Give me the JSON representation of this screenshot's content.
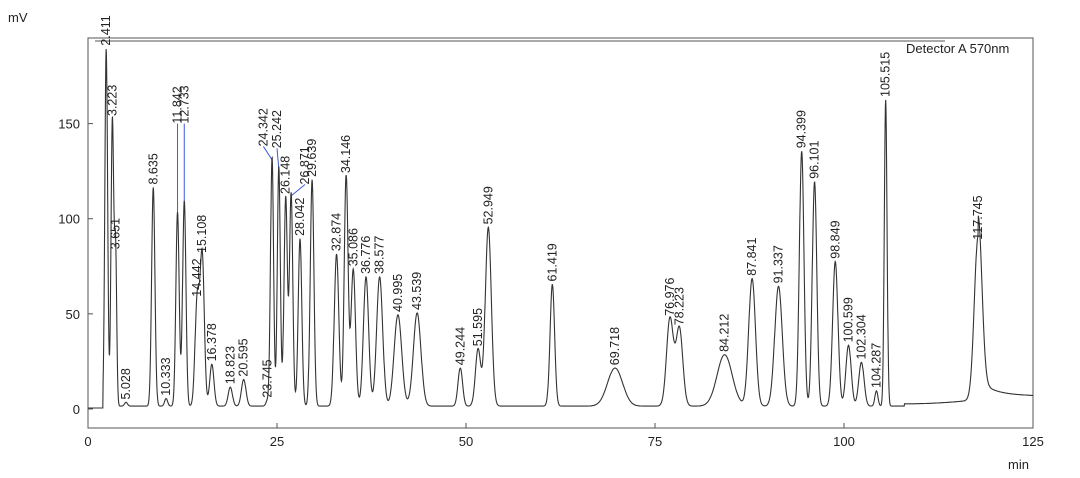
{
  "chart_data": {
    "type": "line",
    "ylabel": "mV",
    "xlabel": "min",
    "annotation": "Detector A 570nm",
    "xlim": [
      0,
      125
    ],
    "ylim": [
      -10,
      195
    ],
    "x_ticks": [
      0,
      25,
      50,
      75,
      100,
      125
    ],
    "y_ticks": [
      0,
      50,
      100,
      150
    ],
    "series_color": "#333333",
    "pointer_color": "#3b5bdb",
    "peaks": [
      {
        "rt": 2.411,
        "height": 188,
        "width": 0.18,
        "label": "2.411"
      },
      {
        "rt": 3.223,
        "height": 151,
        "width": 0.18,
        "label": "3.223"
      },
      {
        "rt": 3.651,
        "height": 81,
        "width": 0.15,
        "label": "3.651"
      },
      {
        "rt": 5.028,
        "height": 2,
        "width": 0.2,
        "label": "5.028"
      },
      {
        "rt": 8.635,
        "height": 115,
        "width": 0.22,
        "label": "8.635"
      },
      {
        "rt": 10.333,
        "height": 4,
        "width": 0.2,
        "label": "10.333"
      },
      {
        "rt": 11.842,
        "height": 102,
        "width": 0.22,
        "label": "11.842"
      },
      {
        "rt": 12.733,
        "height": 108,
        "width": 0.22,
        "label": "12.733"
      },
      {
        "rt": 14.442,
        "height": 56,
        "width": 0.28,
        "label": "14.442"
      },
      {
        "rt": 15.108,
        "height": 79,
        "width": 0.28,
        "label": "15.108"
      },
      {
        "rt": 16.378,
        "height": 22,
        "width": 0.28,
        "label": "16.378"
      },
      {
        "rt": 18.823,
        "height": 10,
        "width": 0.28,
        "label": "18.823"
      },
      {
        "rt": 20.595,
        "height": 14,
        "width": 0.3,
        "label": "20.595"
      },
      {
        "rt": 23.745,
        "height": 3,
        "width": 0.2,
        "label": "23.745"
      },
      {
        "rt": 24.342,
        "height": 131,
        "width": 0.2,
        "label": "24.342"
      },
      {
        "rt": 25.242,
        "height": 126,
        "width": 0.2,
        "label": "25.242"
      },
      {
        "rt": 26.148,
        "height": 110,
        "width": 0.22,
        "label": "26.148"
      },
      {
        "rt": 26.871,
        "height": 112,
        "width": 0.22,
        "label": "26.871"
      },
      {
        "rt": 28.042,
        "height": 88,
        "width": 0.24,
        "label": "28.042"
      },
      {
        "rt": 29.639,
        "height": 119,
        "width": 0.24,
        "label": "29.639"
      },
      {
        "rt": 32.874,
        "height": 80,
        "width": 0.3,
        "label": "32.874"
      },
      {
        "rt": 34.146,
        "height": 121,
        "width": 0.25,
        "label": "34.146"
      },
      {
        "rt": 35.086,
        "height": 72,
        "width": 0.3,
        "label": "35.086"
      },
      {
        "rt": 36.776,
        "height": 68,
        "width": 0.35,
        "label": "36.776"
      },
      {
        "rt": 38.577,
        "height": 68,
        "width": 0.4,
        "label": "38.577"
      },
      {
        "rt": 40.995,
        "height": 48,
        "width": 0.5,
        "label": "40.995"
      },
      {
        "rt": 43.539,
        "height": 49,
        "width": 0.5,
        "label": "43.539"
      },
      {
        "rt": 49.244,
        "height": 20,
        "width": 0.3,
        "label": "49.244"
      },
      {
        "rt": 51.595,
        "height": 30,
        "width": 0.35,
        "label": "51.595"
      },
      {
        "rt": 52.949,
        "height": 94,
        "width": 0.4,
        "label": "52.949"
      },
      {
        "rt": 61.419,
        "height": 64,
        "width": 0.3,
        "label": "61.419"
      },
      {
        "rt": 69.718,
        "height": 20,
        "width": 1.0,
        "label": "69.718"
      },
      {
        "rt": 76.976,
        "height": 46,
        "width": 0.45,
        "label": "76.976"
      },
      {
        "rt": 78.223,
        "height": 41,
        "width": 0.45,
        "label": "78.223"
      },
      {
        "rt": 84.212,
        "height": 27,
        "width": 1.0,
        "label": "84.212"
      },
      {
        "rt": 87.841,
        "height": 67,
        "width": 0.45,
        "label": "87.841"
      },
      {
        "rt": 91.337,
        "height": 63,
        "width": 0.5,
        "label": "91.337"
      },
      {
        "rt": 94.399,
        "height": 134,
        "width": 0.3,
        "label": "94.399"
      },
      {
        "rt": 96.101,
        "height": 118,
        "width": 0.3,
        "label": "96.101"
      },
      {
        "rt": 98.849,
        "height": 76,
        "width": 0.35,
        "label": "98.849"
      },
      {
        "rt": 100.599,
        "height": 32,
        "width": 0.35,
        "label": "100.599"
      },
      {
        "rt": 102.304,
        "height": 23,
        "width": 0.35,
        "label": "102.304"
      },
      {
        "rt": 104.287,
        "height": 8,
        "width": 0.2,
        "label": "104.287"
      },
      {
        "rt": 105.515,
        "height": 161,
        "width": 0.18,
        "label": "105.515"
      },
      {
        "rt": 117.745,
        "height": 86,
        "width": 0.5,
        "label": "117.745"
      }
    ]
  }
}
